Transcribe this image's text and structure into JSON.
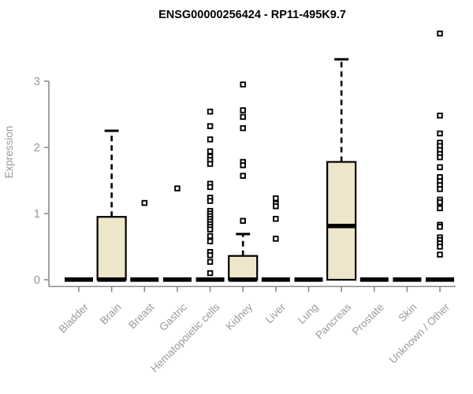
{
  "chart_data": {
    "type": "boxplot",
    "title": "ENSG00000256424 - RP11-495K9.7",
    "ylabel": "Expression",
    "xlabel": "",
    "yticks": [
      0,
      1,
      2,
      3
    ],
    "ylim": [
      0,
      3.9
    ],
    "grid": false,
    "legend": false,
    "categories": [
      "Bladder",
      "Brain",
      "Breast",
      "Gastric",
      "Hematopoietic cells",
      "Kidney",
      "Liver",
      "Lung",
      "Pancreas",
      "Prostate",
      "Skin",
      "Unknown / Other"
    ],
    "boxes": [
      {
        "category": "Bladder",
        "q1": 0,
        "median": 0,
        "q3": 0,
        "whisker_low": 0,
        "whisker_high": 0,
        "outliers": []
      },
      {
        "category": "Brain",
        "q1": 0,
        "median": 0,
        "q3": 0.95,
        "whisker_low": 0,
        "whisker_high": 2.25,
        "outliers": []
      },
      {
        "category": "Breast",
        "q1": 0,
        "median": 0,
        "q3": 0,
        "whisker_low": 0,
        "whisker_high": 0,
        "outliers": [
          1.16
        ]
      },
      {
        "category": "Gastric",
        "q1": 0,
        "median": 0,
        "q3": 0,
        "whisker_low": 0,
        "whisker_high": 0,
        "outliers": [
          1.38
        ]
      },
      {
        "category": "Hematopoietic cells",
        "q1": 0,
        "median": 0,
        "q3": 0,
        "whisker_low": 0,
        "whisker_high": 0,
        "outliers": [
          2.54,
          2.32,
          2.12,
          1.94,
          1.86,
          1.81,
          1.75,
          1.45,
          1.4,
          1.24,
          1.19,
          1.04,
          1.0,
          0.96,
          0.92,
          0.88,
          0.84,
          0.8,
          0.76,
          0.66,
          0.58,
          0.42,
          0.37,
          0.27,
          0.1
        ]
      },
      {
        "category": "Kidney",
        "q1": 0,
        "median": 0,
        "q3": 0.36,
        "whisker_low": 0,
        "whisker_high": 0.69,
        "outliers": [
          2.95,
          2.56,
          2.46,
          2.29,
          1.78,
          1.73,
          1.57,
          0.89
        ]
      },
      {
        "category": "Liver",
        "q1": 0,
        "median": 0,
        "q3": 0,
        "whisker_low": 0,
        "whisker_high": 0,
        "outliers": [
          1.23,
          1.15,
          1.11,
          0.92,
          0.62
        ]
      },
      {
        "category": "Lung",
        "q1": 0,
        "median": 0,
        "q3": 0,
        "whisker_low": 0,
        "whisker_high": 0,
        "outliers": []
      },
      {
        "category": "Pancreas",
        "q1": 0,
        "median": 0.81,
        "q3": 1.78,
        "whisker_low": 0,
        "whisker_high": 3.33,
        "outliers": []
      },
      {
        "category": "Prostate",
        "q1": 0,
        "median": 0,
        "q3": 0,
        "whisker_low": 0,
        "whisker_high": 0,
        "outliers": []
      },
      {
        "category": "Skin",
        "q1": 0,
        "median": 0,
        "q3": 0,
        "whisker_low": 0,
        "whisker_high": 0,
        "outliers": []
      },
      {
        "category": "Unknown / Other",
        "q1": 0,
        "median": 0,
        "q3": 0,
        "whisker_low": 0,
        "whisker_high": 0,
        "outliers": [
          3.72,
          2.48,
          2.21,
          2.07,
          2.02,
          1.96,
          1.9,
          1.85,
          1.7,
          1.55,
          1.49,
          1.43,
          1.37,
          1.21,
          1.17,
          1.08,
          0.83,
          0.8,
          0.64,
          0.6,
          0.55,
          0.5,
          0.38
        ]
      }
    ],
    "colors": {
      "box_fill": "#EDE6CA",
      "box_border": "#000000",
      "median": "#000000",
      "whisker": "#000000",
      "outlier": "#000000",
      "axis": "#8a8a8a",
      "tick_label": "#9a9a9a",
      "title": "#000000",
      "background": "#ffffff"
    }
  }
}
